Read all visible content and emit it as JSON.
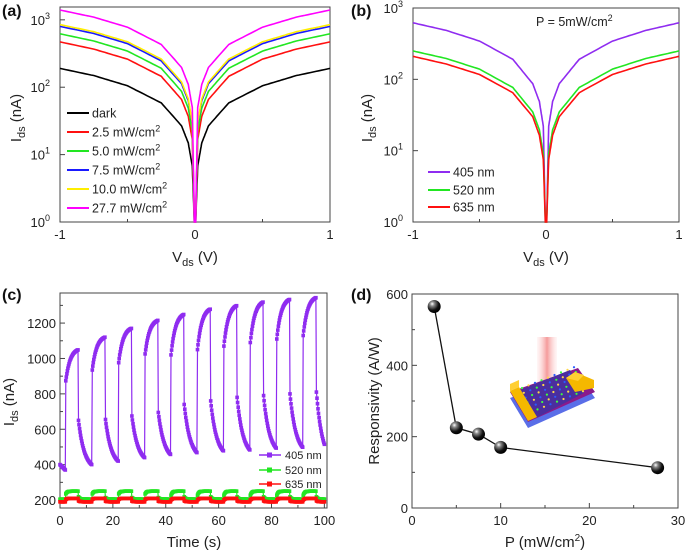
{
  "chart_data": [
    {
      "panel": "(a)",
      "type": "line",
      "yscale": "log",
      "xlabel": {
        "main": "V",
        "sub": "ds",
        "rest": " (V)"
      },
      "ylabel": {
        "main": "I",
        "sub": "ds",
        "rest": " (nA)"
      },
      "xlim": [
        -1,
        1
      ],
      "ylim": [
        1,
        1550
      ],
      "xticks": [
        -1,
        0,
        1
      ],
      "xtick_labels": [
        "-1",
        "0",
        "1"
      ],
      "yticks": [
        1,
        10,
        100,
        1000
      ],
      "ytick_labels": [
        {
          "base": "10",
          "exp": "0"
        },
        {
          "base": "10",
          "exp": "1"
        },
        {
          "base": "10",
          "exp": "2"
        },
        {
          "base": "10",
          "exp": "3"
        }
      ],
      "legend_position": "lower-left",
      "x": [
        -1,
        -0.75,
        -0.5,
        -0.25,
        -0.1,
        -0.05,
        -0.02,
        -0.005,
        0.005,
        0.02,
        0.05,
        0.1,
        0.25,
        0.5,
        0.75,
        1
      ],
      "series": [
        {
          "name": "dark",
          "unit_sup": "",
          "color": "#000000",
          "y": [
            190,
            149,
            105,
            58.5,
            26.8,
            14.9,
            6.8,
            1,
            1,
            6.8,
            14.9,
            26.8,
            58.5,
            105,
            149,
            190
          ]
        },
        {
          "name": "2.5 mW/cm",
          "unit_sup": "2",
          "color": "#ff1010",
          "y": [
            470,
            368,
            261,
            145,
            66,
            37,
            16.8,
            1,
            1,
            16.8,
            37,
            66,
            145,
            261,
            368,
            470
          ]
        },
        {
          "name": "5.0 mW/cm",
          "unit_sup": "2",
          "color": "#22e622",
          "y": [
            620,
            485,
            344,
            191,
            87,
            49,
            22,
            1,
            1,
            22,
            49,
            87,
            191,
            344,
            485,
            620
          ]
        },
        {
          "name": "7.5 mW/cm",
          "unit_sup": "2",
          "color": "#1a1aff",
          "y": [
            800,
            626,
            444,
            246,
            113,
            63,
            29,
            1,
            1,
            29,
            63,
            113,
            246,
            444,
            626,
            800
          ]
        },
        {
          "name": "10.0 mW/cm",
          "unit_sup": "2",
          "color": "#ffee00",
          "y": [
            850,
            666,
            472,
            262,
            120,
            67,
            30,
            1,
            1,
            30,
            67,
            120,
            262,
            472,
            666,
            850
          ]
        },
        {
          "name": "27.7 mW/cm",
          "unit_sup": "2",
          "color": "#ff00ff",
          "y": [
            1400,
            1096,
            777,
            431,
            197,
            110,
            50,
            1,
            1,
            50,
            110,
            197,
            431,
            777,
            1096,
            1400
          ]
        }
      ]
    },
    {
      "panel": "(b)",
      "type": "line",
      "yscale": "log",
      "annotation": {
        "main": "P = 5mW/cm",
        "sup": "2"
      },
      "xlabel": {
        "main": "V",
        "sub": "ds",
        "rest": " (V)"
      },
      "ylabel": {
        "main": "I",
        "sub": "ds",
        "rest": " (nA)"
      },
      "xlim": [
        -1,
        1
      ],
      "ylim": [
        1,
        1000
      ],
      "xticks": [
        -1,
        0,
        1
      ],
      "xtick_labels": [
        "-1",
        "0",
        "1"
      ],
      "yticks": [
        1,
        10,
        100,
        1000
      ],
      "ytick_labels": [
        {
          "base": "10",
          "exp": "0"
        },
        {
          "base": "10",
          "exp": "1"
        },
        {
          "base": "10",
          "exp": "2"
        },
        {
          "base": "10",
          "exp": "3"
        }
      ],
      "legend_position": "lower-left",
      "x": [
        -1,
        -0.75,
        -0.5,
        -0.25,
        -0.1,
        -0.05,
        -0.02,
        -0.005,
        0.005,
        0.02,
        0.05,
        0.1,
        0.25,
        0.5,
        0.75,
        1
      ],
      "series": [
        {
          "name": "405 nm",
          "color": "#8f2cf0",
          "y": [
            620,
            485,
            344,
            191,
            87,
            49,
            22,
            1,
            1,
            22,
            49,
            87,
            191,
            344,
            485,
            620
          ]
        },
        {
          "name": "520 nm",
          "color": "#22e622",
          "y": [
            250,
            196,
            139,
            77,
            35,
            19.6,
            9,
            1,
            1,
            9,
            19.6,
            35,
            77,
            139,
            196,
            250
          ]
        },
        {
          "name": "635 nm",
          "color": "#ff1010",
          "y": [
            210,
            164,
            117,
            65,
            30,
            16.5,
            7.5,
            1,
            1,
            7.5,
            16.5,
            30,
            65,
            117,
            164,
            210
          ]
        }
      ]
    },
    {
      "panel": "(c)",
      "type": "line",
      "xlabel": "Time (s)",
      "ylabel": {
        "main": "I",
        "sub": "ds",
        "rest": " (nA)"
      },
      "xlim": [
        0,
        101
      ],
      "ylim": [
        155,
        1370
      ],
      "xticks": [
        0,
        20,
        40,
        60,
        80,
        100
      ],
      "xtick_labels": [
        "0",
        "20",
        "40",
        "60",
        "80",
        "100"
      ],
      "yticks": [
        200,
        400,
        600,
        800,
        1000,
        1200
      ],
      "ytick_labels": [
        "200",
        "400",
        "600",
        "800",
        "1000",
        "1200"
      ],
      "legend_position": "lower-right",
      "series": [
        {
          "name": "405 nm",
          "color": "#8f2cf0",
          "initial": [
            400,
            370
          ],
          "cycles": [
            {
              "on": 2,
              "off": 7,
              "jump": 850,
              "peak": 1050,
              "drop": 650,
              "trough": 400
            },
            {
              "on": 12,
              "off": 17,
              "jump": 910,
              "peak": 1120,
              "drop": 680,
              "trough": 420
            },
            {
              "on": 22,
              "off": 27,
              "jump": 950,
              "peak": 1170,
              "drop": 700,
              "trough": 440
            },
            {
              "on": 32,
              "off": 37,
              "jump": 1000,
              "peak": 1215,
              "drop": 720,
              "trough": 455
            },
            {
              "on": 42,
              "off": 47,
              "jump": 1020,
              "peak": 1250,
              "drop": 740,
              "trough": 465
            },
            {
              "on": 52,
              "off": 57,
              "jump": 1050,
              "peak": 1280,
              "drop": 760,
              "trough": 475
            },
            {
              "on": 62,
              "off": 67,
              "jump": 1070,
              "peak": 1300,
              "drop": 780,
              "trough": 480
            },
            {
              "on": 72,
              "off": 77,
              "jump": 1090,
              "peak": 1320,
              "drop": 790,
              "trough": 490
            },
            {
              "on": 82,
              "off": 87,
              "jump": 1110,
              "peak": 1335,
              "drop": 800,
              "trough": 495
            },
            {
              "on": 92,
              "off": 97,
              "jump": 1130,
              "peak": 1345,
              "drop": 810,
              "trough": 515
            }
          ]
        },
        {
          "name": "520 nm",
          "color": "#22e622",
          "dark": 205,
          "light": 250,
          "period": 10,
          "on_offset": 2,
          "on_duration": 5
        },
        {
          "name": "635 nm",
          "color": "#ff1010",
          "dark": 190,
          "light": 210,
          "period": 10,
          "on_offset": 2,
          "on_duration": 5
        }
      ]
    },
    {
      "panel": "(d)",
      "type": "line",
      "xlabel": {
        "main": "P (mW/cm",
        "sup": "2",
        "rest": ")"
      },
      "ylabel": "Responsivity (A/W)",
      "xlim": [
        0,
        30
      ],
      "ylim": [
        0,
        600
      ],
      "xticks": [
        0,
        10,
        20,
        30
      ],
      "xtick_labels": [
        "0",
        "10",
        "20",
        "30"
      ],
      "yticks": [
        0,
        200,
        400,
        600
      ],
      "ytick_labels": [
        "0",
        "200",
        "400",
        "600"
      ],
      "x": [
        2.5,
        5.0,
        7.5,
        10.0,
        27.7
      ],
      "y": [
        565,
        225,
        207,
        170,
        113
      ],
      "marker_color": "#000000",
      "inset": "device schematic illuminated by a light beam"
    }
  ]
}
